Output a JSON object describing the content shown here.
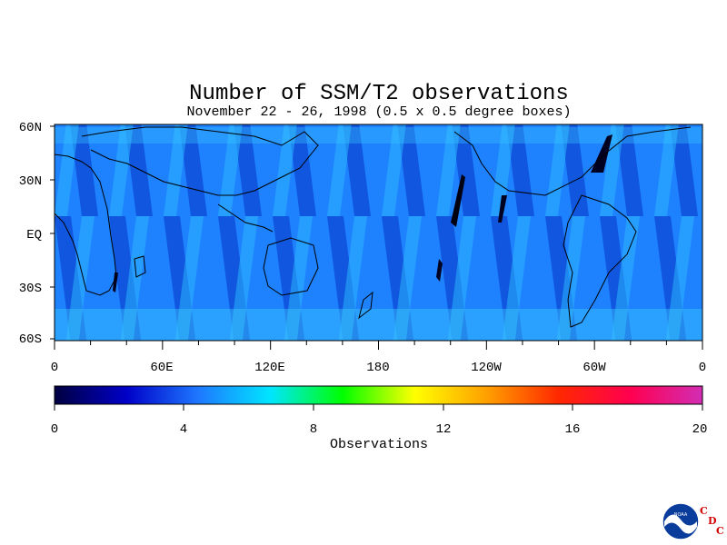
{
  "title": "Number of SSM/T2 observations",
  "subtitle": "November 22 - 26, 1998 (0.5 x 0.5 degree boxes)",
  "map": {
    "lat_labels": [
      "60N",
      "30N",
      "EQ",
      "30S",
      "60S"
    ],
    "lon_labels": [
      "0",
      "60E",
      "120E",
      "180",
      "120W",
      "60W",
      "0"
    ]
  },
  "colorbar": {
    "ticks": [
      "0",
      "4",
      "8",
      "12",
      "16",
      "20"
    ],
    "label": "Observations",
    "range": [
      0,
      20
    ],
    "colors": [
      "#000040",
      "#0000c8",
      "#1e78ff",
      "#00e6ff",
      "#00ff00",
      "#ffff00",
      "#ffa000",
      "#ff2800",
      "#ff0050",
      "#d22db4"
    ]
  },
  "logo": {
    "emblem_text": "NOAA",
    "letters": [
      "C",
      "D",
      "C"
    ]
  }
}
